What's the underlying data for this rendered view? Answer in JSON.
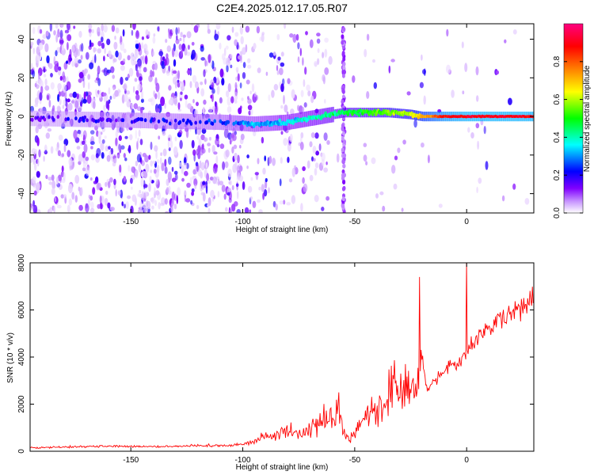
{
  "chart_data": [
    {
      "type": "heatmap",
      "title": "C2E4.2025.012.17.05.R07",
      "xlabel": "Height of straight line (km)",
      "ylabel": "Frequency (Hz)",
      "xlim": [
        -195,
        30
      ],
      "ylim": [
        -50,
        48
      ],
      "xticks": [
        -150,
        -100,
        -50,
        0
      ],
      "yticks": [
        -40,
        -20,
        0,
        20,
        40
      ],
      "colorbar": {
        "label": "Normalized spectral amplitude",
        "range": [
          0.0,
          1.0
        ],
        "ticks": [
          0.0,
          0.2,
          0.4,
          0.6,
          0.8
        ],
        "colormap": [
          "#ffffff",
          "#8000ff",
          "#0000ff",
          "#00ffff",
          "#00ff00",
          "#ffff00",
          "#ff8000",
          "#ff0000",
          "#ff0080"
        ]
      },
      "ridge": {
        "description": "dominant frequency ridge",
        "x": [
          -195,
          -150,
          -110,
          -95,
          -80,
          -65,
          -55,
          -45,
          -35,
          -25,
          -20,
          -10,
          0,
          10,
          20,
          30
        ],
        "y": [
          -1,
          -2,
          -3,
          -4,
          -3,
          0,
          2,
          2,
          2,
          1,
          0,
          0,
          0,
          0,
          0,
          0
        ],
        "amplitude": [
          0.15,
          0.2,
          0.25,
          0.3,
          0.35,
          0.4,
          0.45,
          0.5,
          0.55,
          0.6,
          0.7,
          0.85,
          0.9,
          0.9,
          0.9,
          0.9
        ]
      }
    },
    {
      "type": "line",
      "xlabel": "Height of straight line (km)",
      "ylabel": "SNR (10 * v/v)",
      "xlim": [
        -195,
        30
      ],
      "ylim": [
        0,
        8000
      ],
      "xticks": [
        -150,
        -100,
        -50,
        0
      ],
      "yticks": [
        0,
        2000,
        4000,
        6000,
        8000
      ],
      "color": "#ff0000",
      "x": [
        -195,
        -180,
        -160,
        -140,
        -120,
        -105,
        -100,
        -95,
        -90,
        -85,
        -80,
        -75,
        -70,
        -65,
        -60,
        -58,
        -55,
        -52,
        -50,
        -45,
        -42,
        -40,
        -38,
        -35,
        -33,
        -30,
        -28,
        -25,
        -23,
        -21,
        -20,
        -19,
        -18,
        -17,
        -15,
        -12,
        -10,
        -8,
        -5,
        -2,
        0,
        2,
        5,
        10,
        15,
        20,
        25,
        30
      ],
      "y": [
        150,
        180,
        220,
        200,
        230,
        260,
        300,
        450,
        600,
        700,
        900,
        700,
        1000,
        1300,
        1500,
        1700,
        900,
        500,
        800,
        1500,
        1800,
        1400,
        2000,
        2600,
        3200,
        2500,
        2800,
        2400,
        3000,
        3500,
        4200,
        3300,
        2900,
        2600,
        3000,
        3200,
        3400,
        3600,
        3700,
        3900,
        4000,
        4500,
        4800,
        5200,
        5600,
        5900,
        6200,
        6500
      ],
      "spikes": [
        {
          "x": -57,
          "y": 2500
        },
        {
          "x": -21,
          "y": 7400
        },
        {
          "x": 0,
          "y": 8000
        }
      ]
    }
  ]
}
